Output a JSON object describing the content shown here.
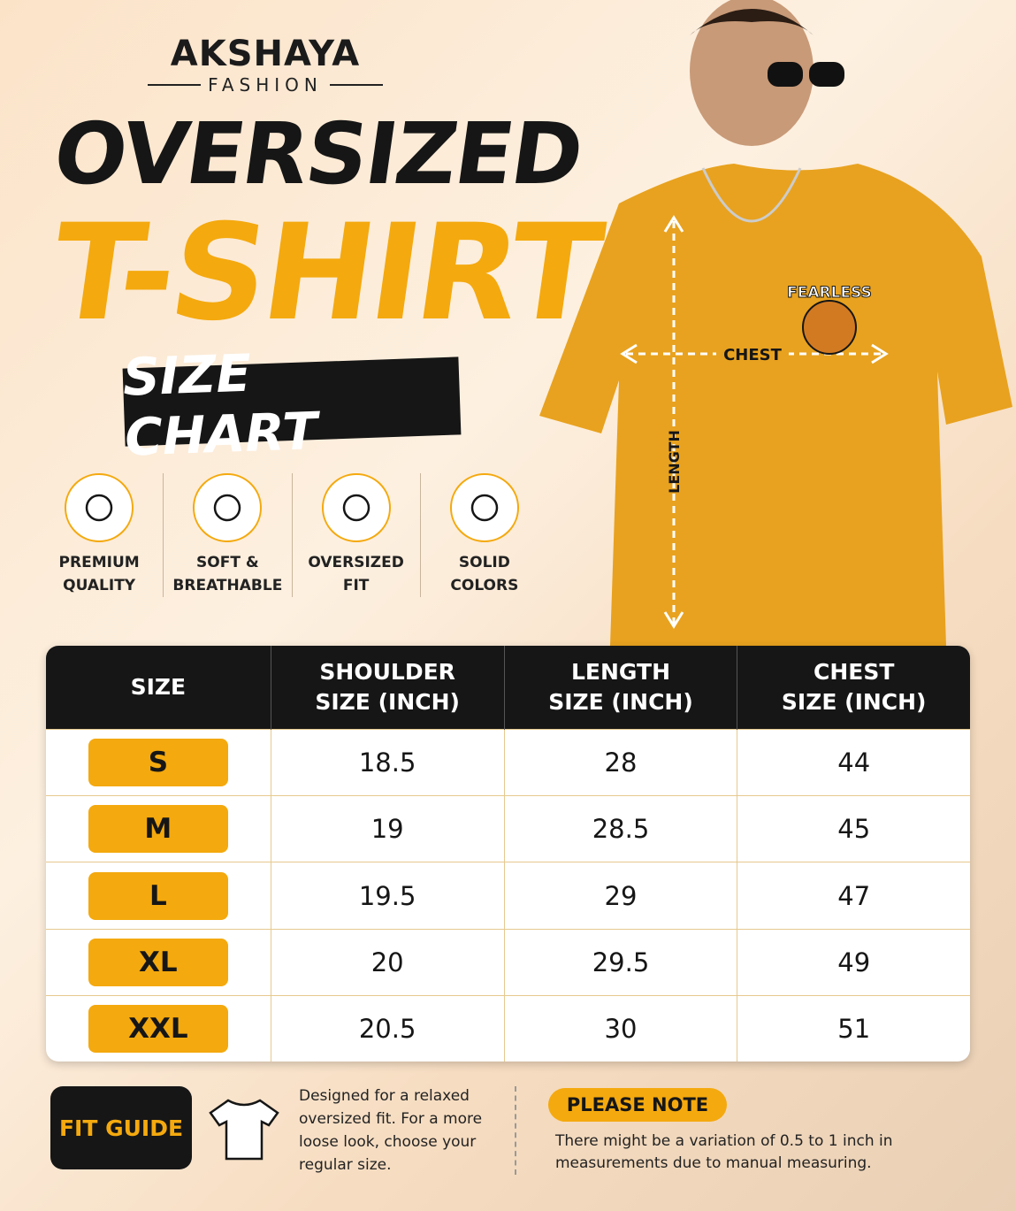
{
  "brand": {
    "name": "AKSHAYA",
    "tagline": "FASHION"
  },
  "title": {
    "line1": "OVERSIZED",
    "line2": "T-SHIRT",
    "banner": "SIZE CHART"
  },
  "features": [
    [
      "PREMIUM",
      "QUALITY"
    ],
    [
      "SOFT &",
      "BREATHABLE"
    ],
    [
      "OVERSIZED",
      "FIT"
    ],
    [
      "SOLID",
      "COLORS"
    ]
  ],
  "illustration": {
    "chest": "CHEST",
    "length": "LENGTH",
    "print": "FEARLESS"
  },
  "table": {
    "header": [
      [
        "SIZE"
      ],
      [
        "SHOULDER",
        "SIZE (INCH)"
      ],
      [
        "LENGTH",
        "SIZE (INCH)"
      ],
      [
        "CHEST",
        "SIZE (INCH)"
      ]
    ],
    "rows": [
      [
        "S",
        18.5,
        28,
        44
      ],
      [
        "M",
        19,
        28.5,
        45
      ],
      [
        "L",
        19.5,
        29,
        47
      ],
      [
        "XL",
        20,
        29.5,
        49
      ],
      [
        "XXL",
        20.5,
        30,
        51
      ]
    ]
  },
  "fit_guide": {
    "label": "FIT GUIDE",
    "text": "Designed for a relaxed oversized fit. For a more loose look, choose your regular size."
  },
  "note": {
    "label": "PLEASE NOTE",
    "text": "There might be a variation of 0.5 to 1 inch in measurements due to manual measuring."
  }
}
